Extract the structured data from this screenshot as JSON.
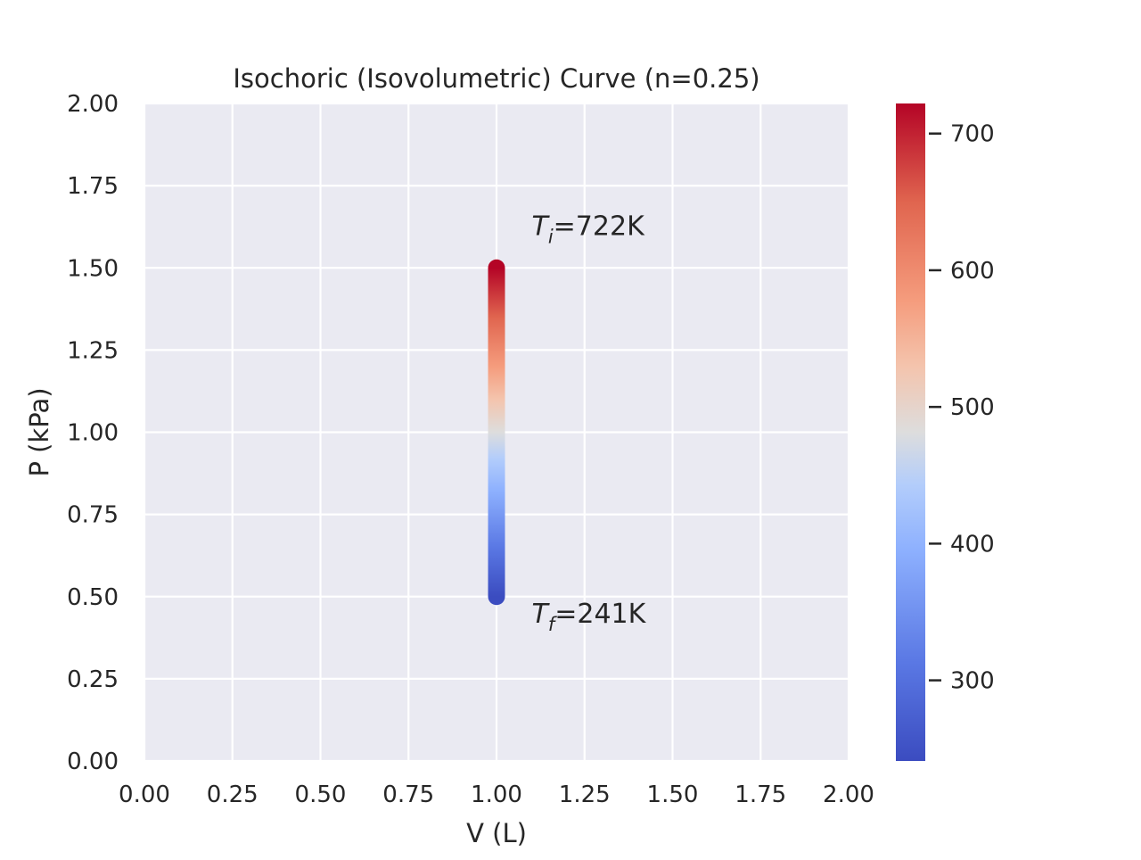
{
  "chart_data": {
    "type": "line",
    "title": "Isochoric (Isovolumetric) Curve (n=0.25)",
    "xlabel": "V (L)",
    "ylabel": "P (kPa)",
    "xlim": [
      0,
      2
    ],
    "ylim": [
      0,
      2
    ],
    "xticks": [
      "0.00",
      "0.25",
      "0.50",
      "0.75",
      "1.00",
      "1.25",
      "1.50",
      "1.75",
      "2.00"
    ],
    "yticks": [
      "0.00",
      "0.25",
      "0.50",
      "0.75",
      "1.00",
      "1.25",
      "1.50",
      "1.75",
      "2.00"
    ],
    "grid": true,
    "series": [
      {
        "x": [
          1.0,
          1.0
        ],
        "y": [
          1.5,
          0.5
        ],
        "color_values": [
          722,
          241
        ],
        "colormap": "coolwarm"
      }
    ],
    "annotations": [
      {
        "symbol": "T",
        "subscript": "i",
        "text": "=722K",
        "x": 1.1,
        "y": 1.6
      },
      {
        "symbol": "T",
        "subscript": "f",
        "text": "=241K",
        "x": 1.1,
        "y": 0.42
      }
    ],
    "colorbar": {
      "range": [
        241,
        722
      ],
      "ticks": [
        300,
        400,
        500,
        600,
        700
      ],
      "tick_labels": [
        "300",
        "400",
        "500",
        "600",
        "700"
      ],
      "colormap": "coolwarm"
    },
    "colors": {
      "plot_background": "#eaeaf2",
      "grid": "#ffffff",
      "text": "#262626",
      "cmap_low": "#3b4cc0",
      "cmap_mid": "#dddddd",
      "cmap_high": "#b40426"
    }
  }
}
